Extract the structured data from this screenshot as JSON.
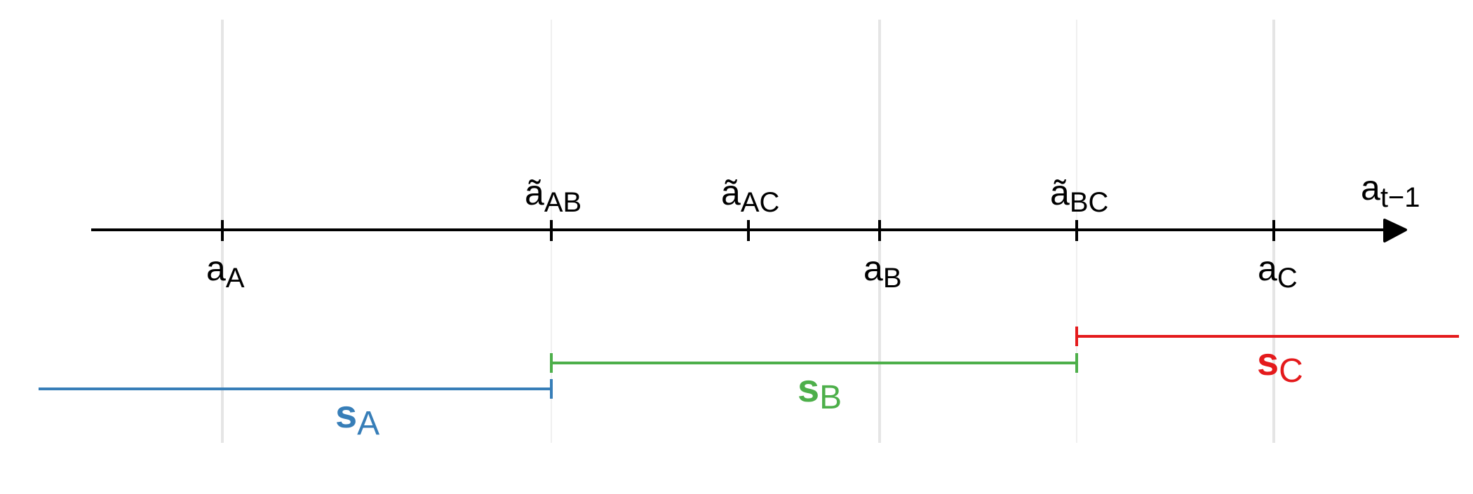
{
  "axis": {
    "label": {
      "main": "a",
      "sub": "t−1"
    },
    "color": "#000000"
  },
  "below_labels": [
    {
      "id": "aA",
      "main": "a",
      "sub": "A"
    },
    {
      "id": "aB",
      "main": "a",
      "sub": "B"
    },
    {
      "id": "aC",
      "main": "a",
      "sub": "C"
    }
  ],
  "above_labels": [
    {
      "id": "aAB",
      "main": "ã",
      "sub": "AB"
    },
    {
      "id": "aAC",
      "main": "ã",
      "sub": "AC"
    },
    {
      "id": "aBC",
      "main": "ã",
      "sub": "BC"
    }
  ],
  "segments": [
    {
      "id": "sA",
      "main": "s",
      "sub": "A",
      "color": "#377EB8"
    },
    {
      "id": "sB",
      "main": "s",
      "sub": "B",
      "color": "#4DAF4A"
    },
    {
      "id": "sC",
      "main": "s",
      "sub": "C",
      "color": "#E41A1C"
    }
  ],
  "gridline_color": "#E5E5E5"
}
